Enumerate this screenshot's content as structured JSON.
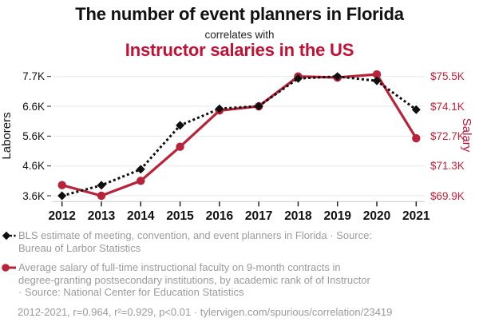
{
  "title": {
    "line1": "The number of event planners in Florida",
    "line2": "correlates with",
    "line3": "Instructor salaries in the US"
  },
  "colors": {
    "red_title": "#c11236",
    "red_series": "#b92339",
    "black_series": "#0f0f0f",
    "grid": "#ececec",
    "axis_line": "#cccccc",
    "tick": "#222222",
    "legend_text": "#9b9b9b"
  },
  "chart_data": {
    "type": "line",
    "x": [
      2012,
      2013,
      2014,
      2015,
      2016,
      2017,
      2018,
      2019,
      2020,
      2021
    ],
    "series": [
      {
        "name": "BLS estimate of meeting, convention, and event planners in Florida",
        "axis": "left",
        "marker": "diamond",
        "line_style": "dashed",
        "color": "#0f0f0f",
        "values": [
          3600,
          3960,
          4510,
          6020,
          6590,
          6680,
          7630,
          7700,
          7550,
          6560
        ]
      },
      {
        "name": "Average salary of full-time instructional faculty on 9-month contracts (Instructor rank)",
        "axis": "right",
        "marker": "circle",
        "line_style": "solid",
        "color": "#b92339",
        "values": [
          70400,
          69900,
          70600,
          72200,
          73900,
          74100,
          75500,
          75450,
          75600,
          72600
        ]
      }
    ],
    "left_axis": {
      "label": "Laborers",
      "tick_labels": [
        "7.7K",
        "6.6K",
        "5.6K",
        "4.6K",
        "3.6K"
      ],
      "domain_min": 3600,
      "domain_max": 7700
    },
    "right_axis": {
      "label": "Salary",
      "tick_labels": [
        "$75.5K",
        "$74.1K",
        "$72.7K",
        "$71.3K",
        "$69.9K"
      ],
      "domain_min": 69900,
      "domain_max": 75500
    },
    "grid": "horizontal-only",
    "legend_position": "below-chart"
  },
  "legend": {
    "series1": {
      "line1": "BLS estimate of meeting, convention, and event planners in Florida · Source:",
      "line2": "Bureau of Larbor Statistics"
    },
    "series2": {
      "line1": "Average salary of full-time instructional faculty on 9-month contracts in",
      "line2": "degree-granting postsecondary institutions, by academic rank of of Instructor",
      "line3": "· Source: National Center for Education Statistics"
    }
  },
  "footer": {
    "stats": "2012-2021, r=0.964, r²=0.929, p<0.01 · tylervigen.com/spurious/correlation/23419"
  }
}
